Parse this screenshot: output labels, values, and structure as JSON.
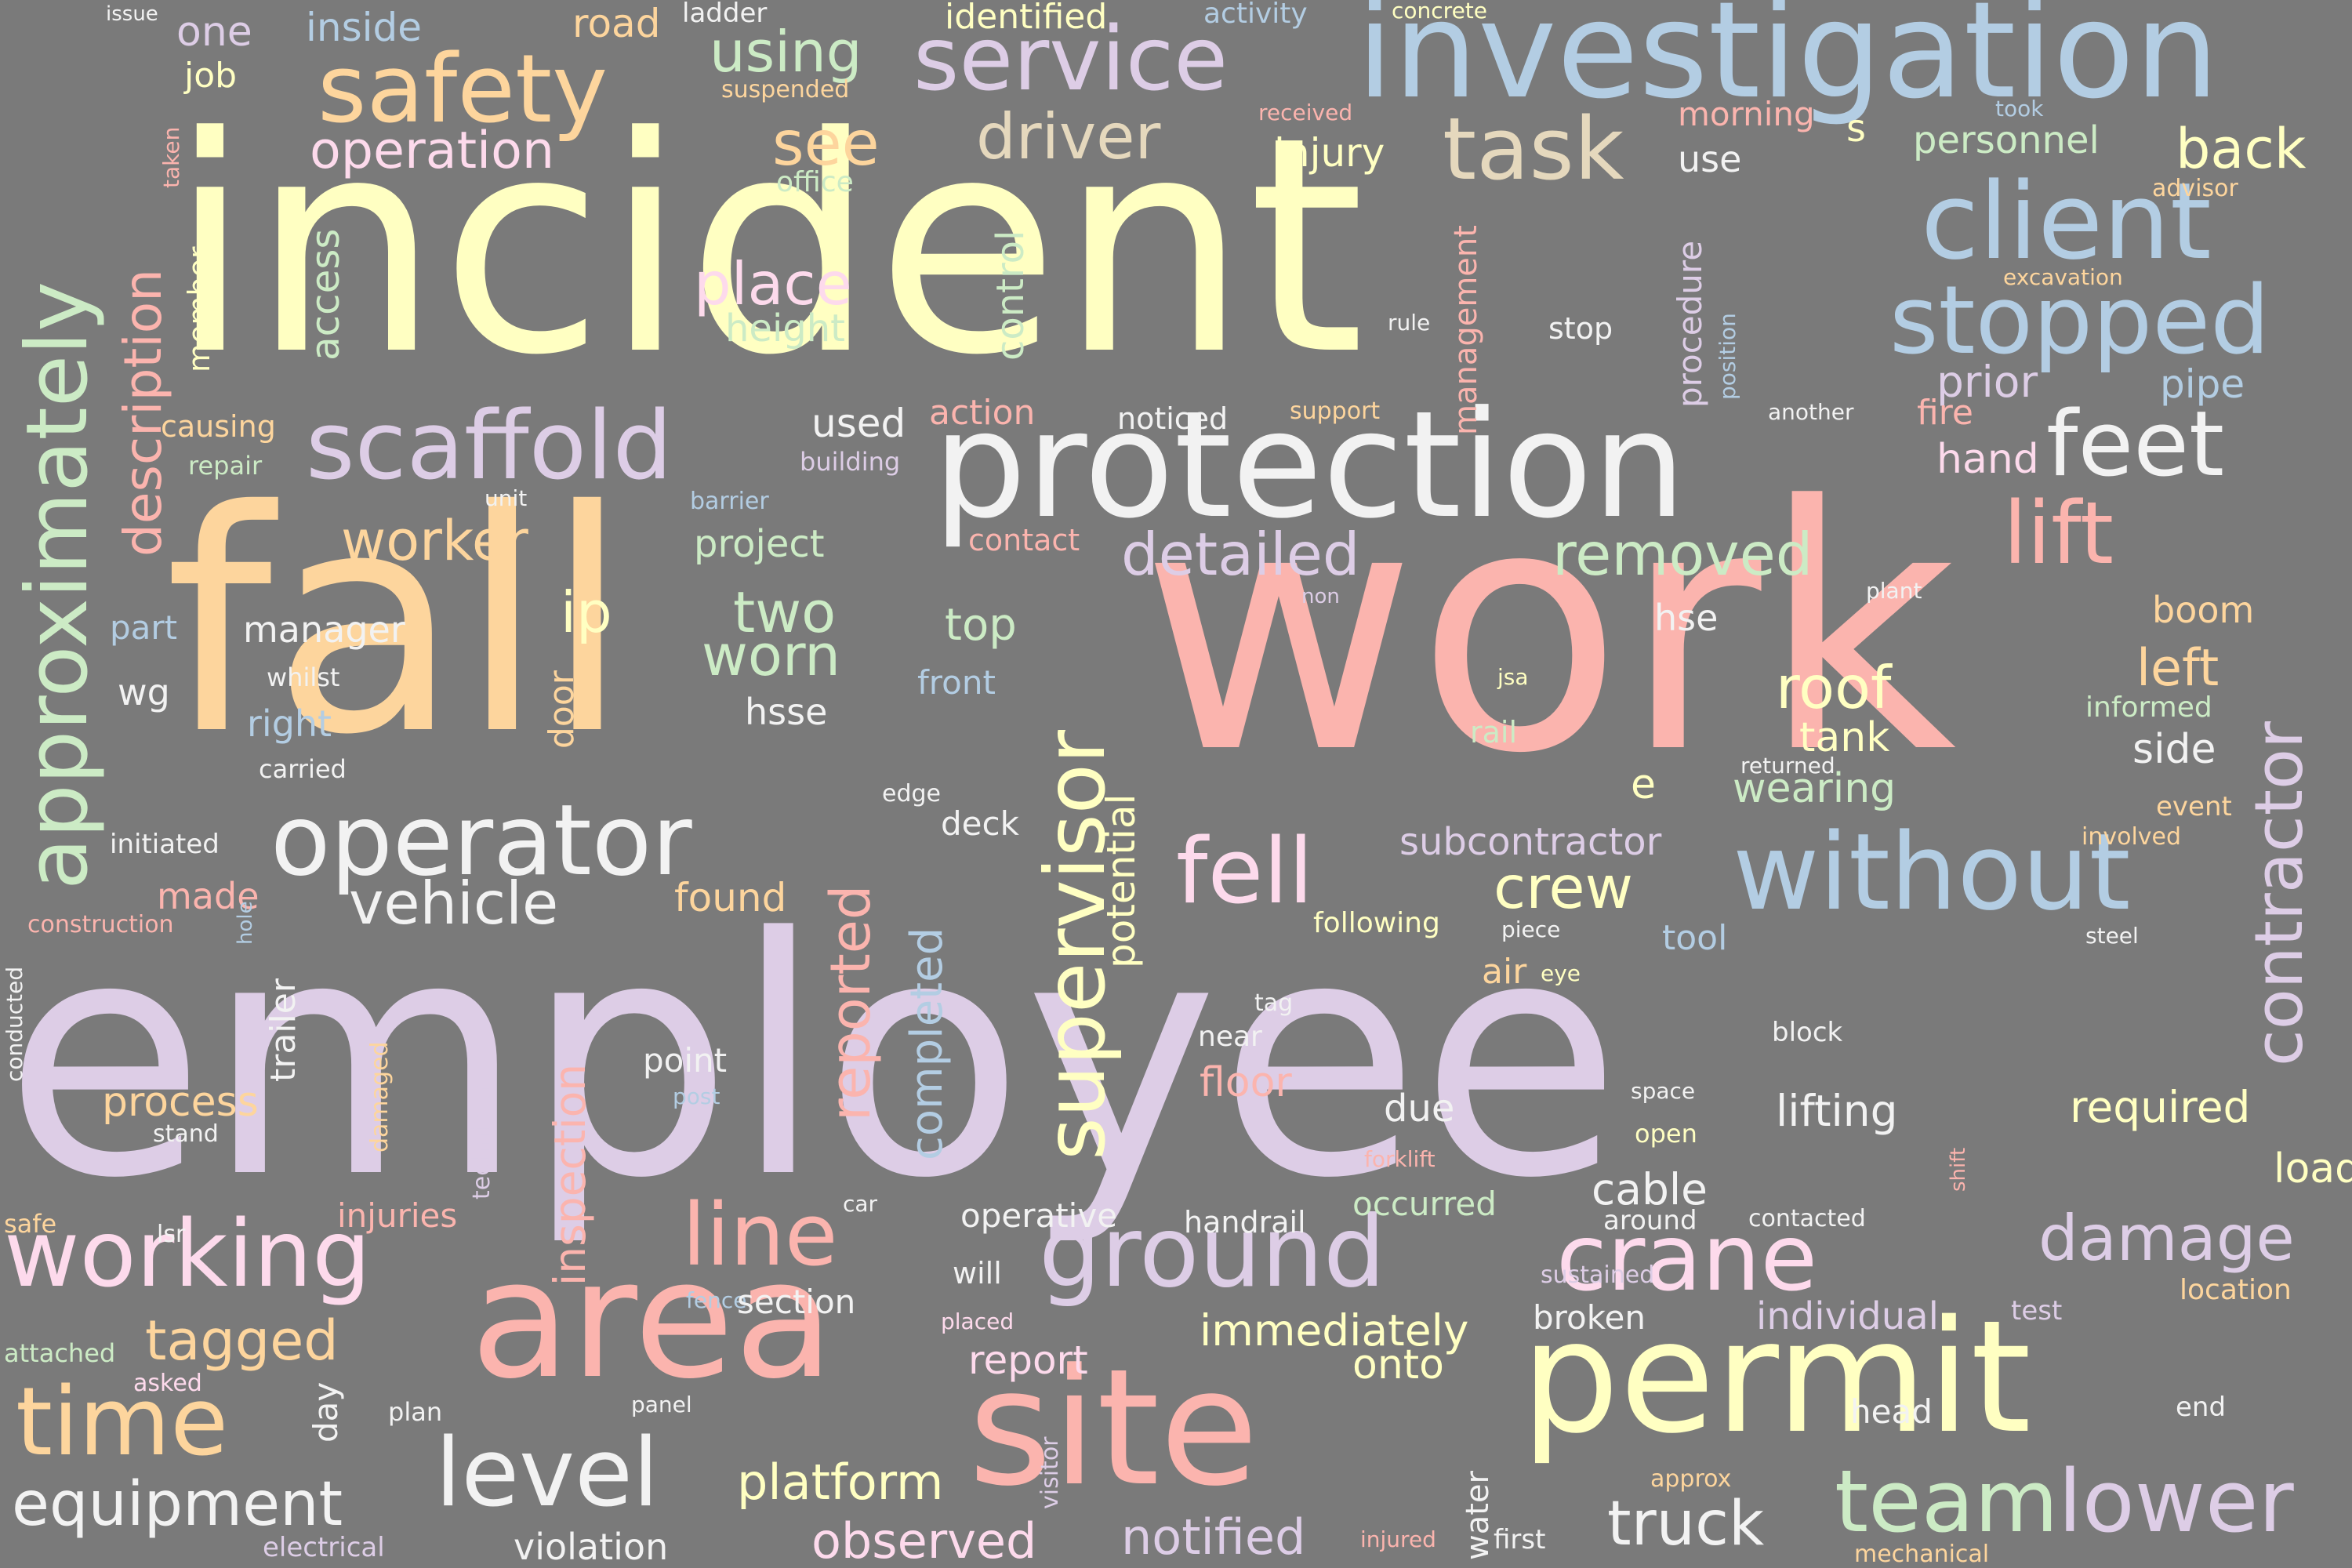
{
  "palette": {
    "background": "#7a7a7a",
    "cream": "#ffffc2",
    "orange": "#fdd59d",
    "salmon": "#fbb4ae",
    "lavender": "#ddcde6",
    "blue": "#b3cde3",
    "green": "#ccebc5",
    "pink": "#fddaec",
    "white": "#f2f2f2",
    "tan": "#e5d8bd"
  },
  "words": {
    "employee": "employee",
    "work": "work",
    "incident": "incident",
    "fall": "fall",
    "investigation": "investigation",
    "protection": "protection",
    "permit": "permit",
    "site": "site",
    "area": "area",
    "safety": "safety",
    "service": "service",
    "operator": "operator",
    "client": "client",
    "stopped": "stopped",
    "without": "without",
    "approximately": "approximately",
    "scaffold": "scaffold",
    "supervisor": "supervisor",
    "ground": "ground",
    "working": "working",
    "crane": "crane",
    "level": "level",
    "time": "time",
    "team": "team",
    "lower": "lower",
    "line": "line",
    "feet": "feet",
    "lift": "lift",
    "fell": "fell",
    "task": "task",
    "driver": "driver",
    "contractor": "contractor",
    "vehicle": "vehicle",
    "equipment": "equipment",
    "truck": "truck",
    "damage": "damage",
    "detailed": "detailed",
    "removed": "removed",
    "worker": "worker",
    "place": "place",
    "reported": "reported",
    "description": "description",
    "crew": "crew",
    "roof": "roof",
    "two": "two",
    "worn": "worn",
    "see": "see",
    "using": "using",
    "operation": "operation",
    "tagged": "tagged",
    "platform": "platform",
    "back": "back",
    "ip": "ip",
    "notified": "notified",
    "observed": "observed",
    "inspection": "inspection",
    "completed": "completed",
    "lifting": "lifting",
    "required": "required",
    "immediately": "immediately",
    "left": "left",
    "tank": "tank",
    "wearing": "wearing",
    "injury": "injury",
    "subcontractor": "subcontractor",
    "potential": "potential",
    "cable": "cable",
    "floor": "floor",
    "individual": "individual",
    "onto": "onto",
    "report": "report",
    "found": "found",
    "load": "load",
    "boom": "boom",
    "process": "process",
    "violation": "violation",
    "side": "side",
    "prior": "prior",
    "pipe": "pipe",
    "hand": "hand",
    "personnel": "personnel",
    "procedure": "procedure",
    "management": "management",
    "use": "use",
    "morning": "morning",
    "job": "job",
    "one": "one",
    "inside": "inside",
    "road": "road",
    "ladder": "ladder",
    "identified": "identified",
    "activity": "activity",
    "concrete": "concrete",
    "issue": "issue",
    "suspended": "suspended",
    "office": "office",
    "taken": "taken",
    "member": "member",
    "access": "access",
    "height": "height",
    "control": "control",
    "causing": "causing",
    "repair": "repair",
    "unit": "unit",
    "building": "building",
    "barrier": "barrier",
    "used": "used",
    "action": "action",
    "noticed": "noticed",
    "support": "support",
    "rule": "rule",
    "stop": "stop",
    "fire": "fire",
    "another": "another",
    "position": "position",
    "excavation": "excavation",
    "advisor": "advisor",
    "took": "took",
    "received": "received",
    "s": "s",
    "project": "project",
    "contact": "contact",
    "manager": "manager",
    "part": "part",
    "whilst": "whilst",
    "wg": "wg",
    "right": "right",
    "carried": "carried",
    "door": "door",
    "hsse": "hsse",
    "top": "top",
    "front": "front",
    "hse": "hse",
    "non": "non",
    "jsa": "jsa",
    "rail": "rail",
    "plant": "plant",
    "informed": "informed",
    "returned": "returned",
    "e": "e",
    "edge": "edge",
    "deck": "deck",
    "event": "event",
    "involved": "involved",
    "initiated": "initiated",
    "made": "made",
    "construction": "construction",
    "hole": "hole",
    "trailer": "trailer",
    "following": "following",
    "piece": "piece",
    "tool": "tool",
    "steel": "steel",
    "air": "air",
    "eye": "eye",
    "tag": "tag",
    "near": "near",
    "block": "block",
    "point": "point",
    "post": "post",
    "due": "due",
    "space": "space",
    "open": "open",
    "conducted": "conducted",
    "damaged": "damaged",
    "technician": "technician",
    "stand": "stand",
    "forklift": "forklift",
    "shift": "shift",
    "safe": "safe",
    "lsr": "lsr",
    "injuries": "injuries",
    "car": "car",
    "operative": "operative",
    "handrail": "handrail",
    "occurred": "occurred",
    "around": "around",
    "contacted": "contacted",
    "will": "will",
    "fence": "fence",
    "section": "section",
    "sustained": "sustained",
    "location": "location",
    "test": "test",
    "broken": "broken",
    "attached": "attached",
    "asked": "asked",
    "day": "day",
    "placed": "placed",
    "plan": "plan",
    "panel": "panel",
    "head": "head",
    "end": "end",
    "water": "water",
    "approx": "approx",
    "electrical": "electrical",
    "injured": "injured",
    "first": "first",
    "mechanical": "mechanical",
    "visitor": "visitor"
  }
}
